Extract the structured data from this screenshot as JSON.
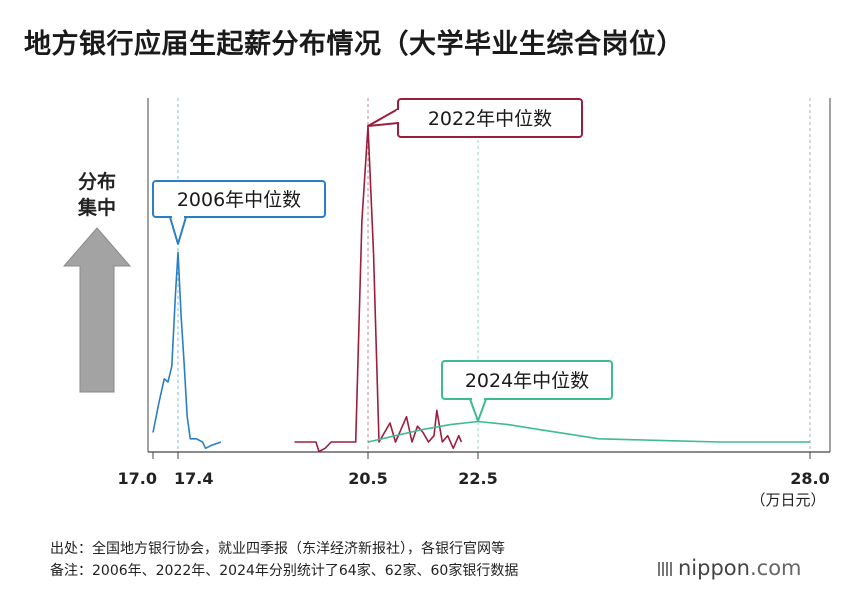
{
  "title": "地方银行应届生起薪分布情况（大学毕业生综合岗位）",
  "y_indicator": {
    "line1": "分布",
    "line2": "集中"
  },
  "unit_label": "（万日元）",
  "source_line": "出处：全国地方银行协会，就业四季报（东洋经济新报社），各银行官网等",
  "note_line": "备注：2006年、2022年、2024年分别统计了64家、62家、60家银行数据",
  "brand": {
    "name": "nippon",
    "suffix": ".com"
  },
  "chart_data": {
    "type": "line",
    "title": "地方银行应届生起薪分布情况（大学毕业生综合岗位）",
    "xlabel": "（万日元）",
    "ylabel": "分布集中",
    "x_range": [
      17.0,
      28.0
    ],
    "y_range": [
      0,
      1
    ],
    "x_ticks": [
      {
        "value": 17.0,
        "label": "17.0"
      },
      {
        "value": 17.4,
        "label": "17.4"
      },
      {
        "value": 20.5,
        "label": "20.5"
      },
      {
        "value": 22.5,
        "label": "22.5"
      },
      {
        "value": 28.0,
        "label": "28.0"
      }
    ],
    "series": [
      {
        "name": "2006年",
        "color": "#2a7fc4",
        "median": 17.4,
        "callout": "2006年中位数",
        "points": [
          [
            17.0,
            0.03
          ],
          [
            17.1,
            0.13
          ],
          [
            17.18,
            0.2
          ],
          [
            17.24,
            0.19
          ],
          [
            17.3,
            0.24
          ],
          [
            17.36,
            0.47
          ],
          [
            17.4,
            0.6
          ],
          [
            17.45,
            0.4
          ],
          [
            17.5,
            0.25
          ],
          [
            17.55,
            0.08
          ],
          [
            17.6,
            0.01
          ],
          [
            17.7,
            0.01
          ],
          [
            17.8,
            0.0
          ],
          [
            17.85,
            -0.02
          ],
          [
            17.95,
            -0.01
          ],
          [
            18.1,
            0.0
          ]
        ]
      },
      {
        "name": "2022年",
        "color": "#9b1e3f",
        "median": 20.5,
        "callout": "2022年中位数",
        "points": [
          [
            19.3,
            0.0
          ],
          [
            19.65,
            0.0
          ],
          [
            19.7,
            -0.03
          ],
          [
            19.8,
            -0.02
          ],
          [
            19.9,
            0.0
          ],
          [
            20.3,
            0.0
          ],
          [
            20.4,
            0.7
          ],
          [
            20.5,
            1.0
          ],
          [
            20.6,
            0.6
          ],
          [
            20.7,
            0.0
          ],
          [
            20.8,
            0.03
          ],
          [
            20.9,
            0.06
          ],
          [
            21.0,
            0.0
          ],
          [
            21.1,
            0.04
          ],
          [
            21.2,
            0.08
          ],
          [
            21.3,
            0.0
          ],
          [
            21.4,
            0.05
          ],
          [
            21.5,
            0.03
          ],
          [
            21.6,
            0.0
          ],
          [
            21.7,
            0.02
          ],
          [
            21.75,
            0.1
          ],
          [
            21.85,
            0.0
          ],
          [
            21.95,
            0.02
          ],
          [
            22.05,
            -0.02
          ],
          [
            22.15,
            0.02
          ],
          [
            22.2,
            0.0
          ]
        ]
      },
      {
        "name": "2024年",
        "color": "#3dbb95",
        "median": 22.5,
        "callout": "2024年中位数",
        "points": [
          [
            20.5,
            0.0
          ],
          [
            21.0,
            0.02
          ],
          [
            21.5,
            0.04
          ],
          [
            22.0,
            0.055
          ],
          [
            22.5,
            0.065
          ],
          [
            23.0,
            0.055
          ],
          [
            23.5,
            0.04
          ],
          [
            24.0,
            0.025
          ],
          [
            24.5,
            0.01
          ],
          [
            25.5,
            0.005
          ],
          [
            26.5,
            0.0
          ],
          [
            27.5,
            0.0
          ],
          [
            28.0,
            0.0
          ]
        ]
      }
    ]
  }
}
